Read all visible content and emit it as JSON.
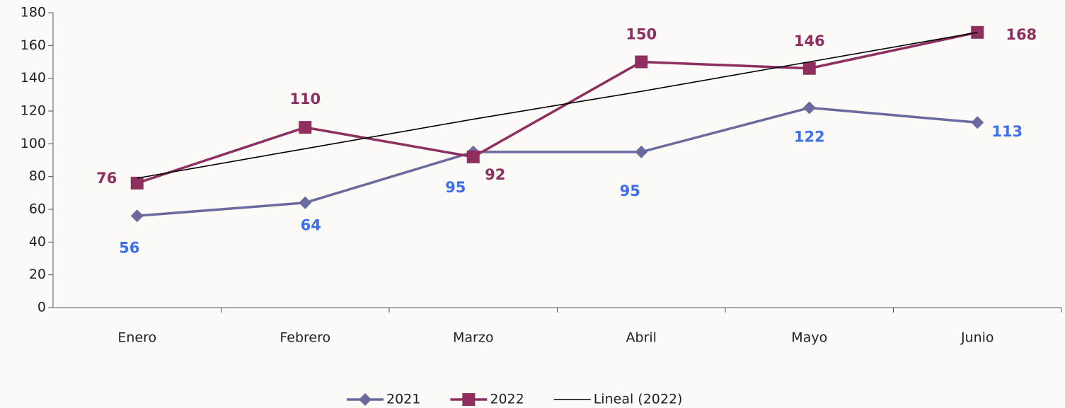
{
  "chart_data": {
    "type": "line",
    "categories": [
      "Enero",
      "Febrero",
      "Marzo",
      "Abril",
      "Mayo",
      "Junio"
    ],
    "series": [
      {
        "name": "2021",
        "color": "#6b6a9f",
        "label_color": "#3d6ef0",
        "marker": "diamond",
        "values": [
          56,
          64,
          95,
          95,
          122,
          113
        ]
      },
      {
        "name": "2022",
        "color": "#8e2f60",
        "label_color": "#8e2f60",
        "marker": "square",
        "values": [
          76,
          110,
          92,
          150,
          146,
          168
        ]
      },
      {
        "name": "Lineal (2022)",
        "color": "#000000",
        "values": [
          79,
          97,
          115,
          132,
          150,
          168
        ]
      }
    ],
    "ylim": [
      0,
      180
    ],
    "yticks": [
      0,
      20,
      40,
      60,
      80,
      100,
      120,
      140,
      160,
      180
    ]
  }
}
